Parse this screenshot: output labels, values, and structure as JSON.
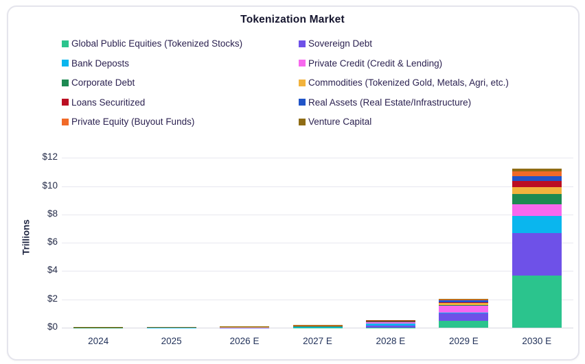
{
  "title": "Tokenization Market",
  "chart_data": {
    "type": "bar",
    "stacked": true,
    "title": "Tokenization Market",
    "xlabel": "",
    "ylabel": "Trillions",
    "ylim": [
      0,
      12.7
    ],
    "grid": true,
    "legend_position": "top",
    "legend_columns": 2,
    "ytick_values": [
      0,
      2,
      4,
      6,
      8,
      10,
      12
    ],
    "ytick_labels": [
      "$0",
      "$2",
      "$4",
      "$6",
      "$8",
      "$10",
      "$12"
    ],
    "categories": [
      "2024",
      "2025",
      "2026 E",
      "2027 E",
      "2028 E",
      "2029 E",
      "2030 E"
    ],
    "units": "USD trillions",
    "series": [
      {
        "name": "Global Public Equities (Tokenized Stocks)",
        "color": "#2bc48d",
        "values": [
          0.005,
          0.006,
          0.01,
          0.015,
          0.02,
          0.5,
          3.7
        ]
      },
      {
        "name": "Sovereign Debt",
        "color": "#6e51e8",
        "values": [
          0.005,
          0.006,
          0.01,
          0.03,
          0.15,
          0.55,
          3.0
        ]
      },
      {
        "name": "Bank Deposts",
        "color": "#0ab6ee",
        "values": [
          0.003,
          0.004,
          0.006,
          0.01,
          0.1,
          0.03,
          1.2
        ]
      },
      {
        "name": "Private Credit (Credit & Lending)",
        "color": "#f768ee",
        "values": [
          0.008,
          0.01,
          0.02,
          0.055,
          0.15,
          0.45,
          0.8
        ]
      },
      {
        "name": "Corporate Debt",
        "color": "#1d8a52",
        "values": [
          0.004,
          0.005,
          0.007,
          0.008,
          0.02,
          0.05,
          0.75
        ]
      },
      {
        "name": "Commodities (Tokenized Gold, Metals, Agri, etc.)",
        "color": "#f2b33d",
        "values": [
          0.015,
          0.017,
          0.02,
          0.02,
          0.03,
          0.15,
          0.5
        ]
      },
      {
        "name": "Loans Securitized",
        "color": "#bb0e23",
        "values": [
          0.004,
          0.005,
          0.007,
          0.008,
          0.02,
          0.06,
          0.4
        ]
      },
      {
        "name": "Real Assets (Real Estate/Infrastructure)",
        "color": "#2154c8",
        "values": [
          0.004,
          0.005,
          0.007,
          0.01,
          0.02,
          0.18,
          0.35
        ]
      },
      {
        "name": "Private Equity (Buyout Funds)",
        "color": "#f16a28",
        "values": [
          0.004,
          0.005,
          0.007,
          0.008,
          0.02,
          0.04,
          0.35
        ]
      },
      {
        "name": "Venture Capital",
        "color": "#8f6c14",
        "values": [
          0.004,
          0.005,
          0.007,
          0.008,
          0.02,
          0.03,
          0.2
        ]
      }
    ]
  }
}
